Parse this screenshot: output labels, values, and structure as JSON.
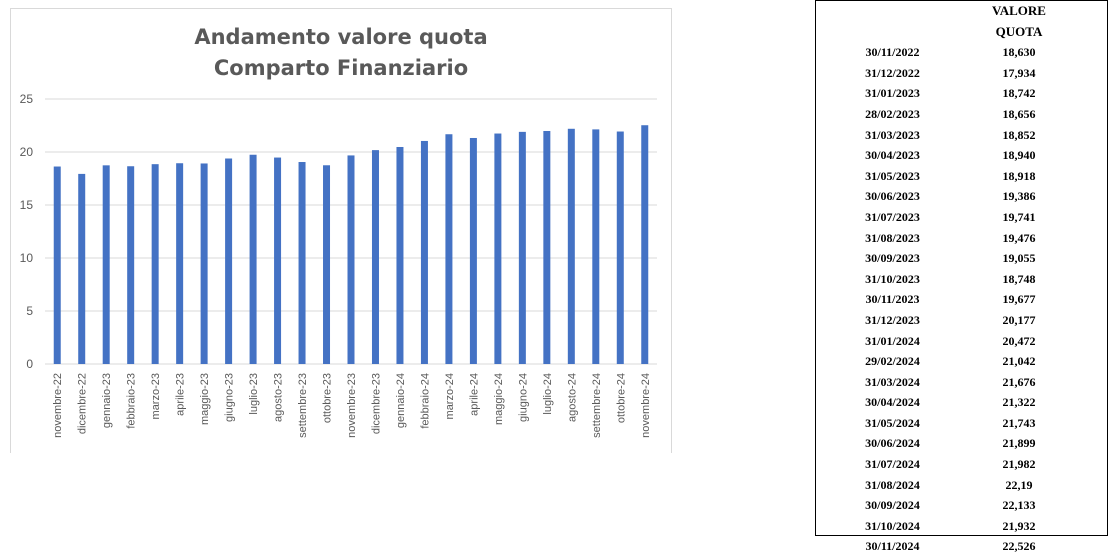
{
  "chart_data": {
    "type": "bar",
    "title": [
      "Andamento valore quota",
      "Comparto Finanziario"
    ],
    "categories": [
      "novembre-22",
      "dicembre-22",
      "gennaio-23",
      "febbraio-23",
      "marzo-23",
      "aprile-23",
      "maggio-23",
      "giugno-23",
      "luglio-23",
      "agosto-23",
      "settembre-23",
      "ottobre-23",
      "novembre-23",
      "dicembre-23",
      "gennaio-24",
      "febbraio-24",
      "marzo-24",
      "aprile-24",
      "maggio-24",
      "giugno-24",
      "luglio-24",
      "agosto-24",
      "settembre-24",
      "ottobre-24",
      "novembre-24"
    ],
    "values": [
      18.63,
      17.934,
      18.742,
      18.656,
      18.852,
      18.94,
      18.918,
      19.386,
      19.741,
      19.476,
      19.055,
      18.748,
      19.677,
      20.177,
      20.472,
      21.042,
      21.676,
      21.322,
      21.743,
      21.899,
      21.982,
      22.19,
      22.133,
      21.932,
      22.526
    ],
    "ylim": [
      0,
      25
    ],
    "yticks": [
      0,
      5,
      10,
      15,
      20,
      25
    ],
    "grid": true,
    "bar_color": "#4472c4"
  },
  "table": {
    "header_date": "",
    "header_value": "VALORE QUOTA",
    "rows": [
      {
        "date": "30/11/2022",
        "value": "18,630"
      },
      {
        "date": "31/12/2022",
        "value": "17,934"
      },
      {
        "date": "31/01/2023",
        "value": "18,742"
      },
      {
        "date": "28/02/2023",
        "value": "18,656"
      },
      {
        "date": "31/03/2023",
        "value": "18,852"
      },
      {
        "date": "30/04/2023",
        "value": "18,940"
      },
      {
        "date": "31/05/2023",
        "value": "18,918"
      },
      {
        "date": "30/06/2023",
        "value": "19,386"
      },
      {
        "date": "31/07/2023",
        "value": "19,741"
      },
      {
        "date": "31/08/2023",
        "value": "19,476"
      },
      {
        "date": "30/09/2023",
        "value": "19,055"
      },
      {
        "date": "31/10/2023",
        "value": "18,748"
      },
      {
        "date": "30/11/2023",
        "value": "19,677"
      },
      {
        "date": "31/12/2023",
        "value": "20,177"
      },
      {
        "date": "31/01/2024",
        "value": "20,472"
      },
      {
        "date": "29/02/2024",
        "value": "21,042"
      },
      {
        "date": "31/03/2024",
        "value": "21,676"
      },
      {
        "date": "30/04/2024",
        "value": "21,322"
      },
      {
        "date": "31/05/2024",
        "value": "21,743"
      },
      {
        "date": "30/06/2024",
        "value": "21,899"
      },
      {
        "date": "31/07/2024",
        "value": "21,982"
      },
      {
        "date": "31/08/2024",
        "value": "22,19"
      },
      {
        "date": "30/09/2024",
        "value": "22,133"
      },
      {
        "date": "31/10/2024",
        "value": "21,932"
      },
      {
        "date": "30/11/2024",
        "value": "22,526"
      }
    ]
  }
}
